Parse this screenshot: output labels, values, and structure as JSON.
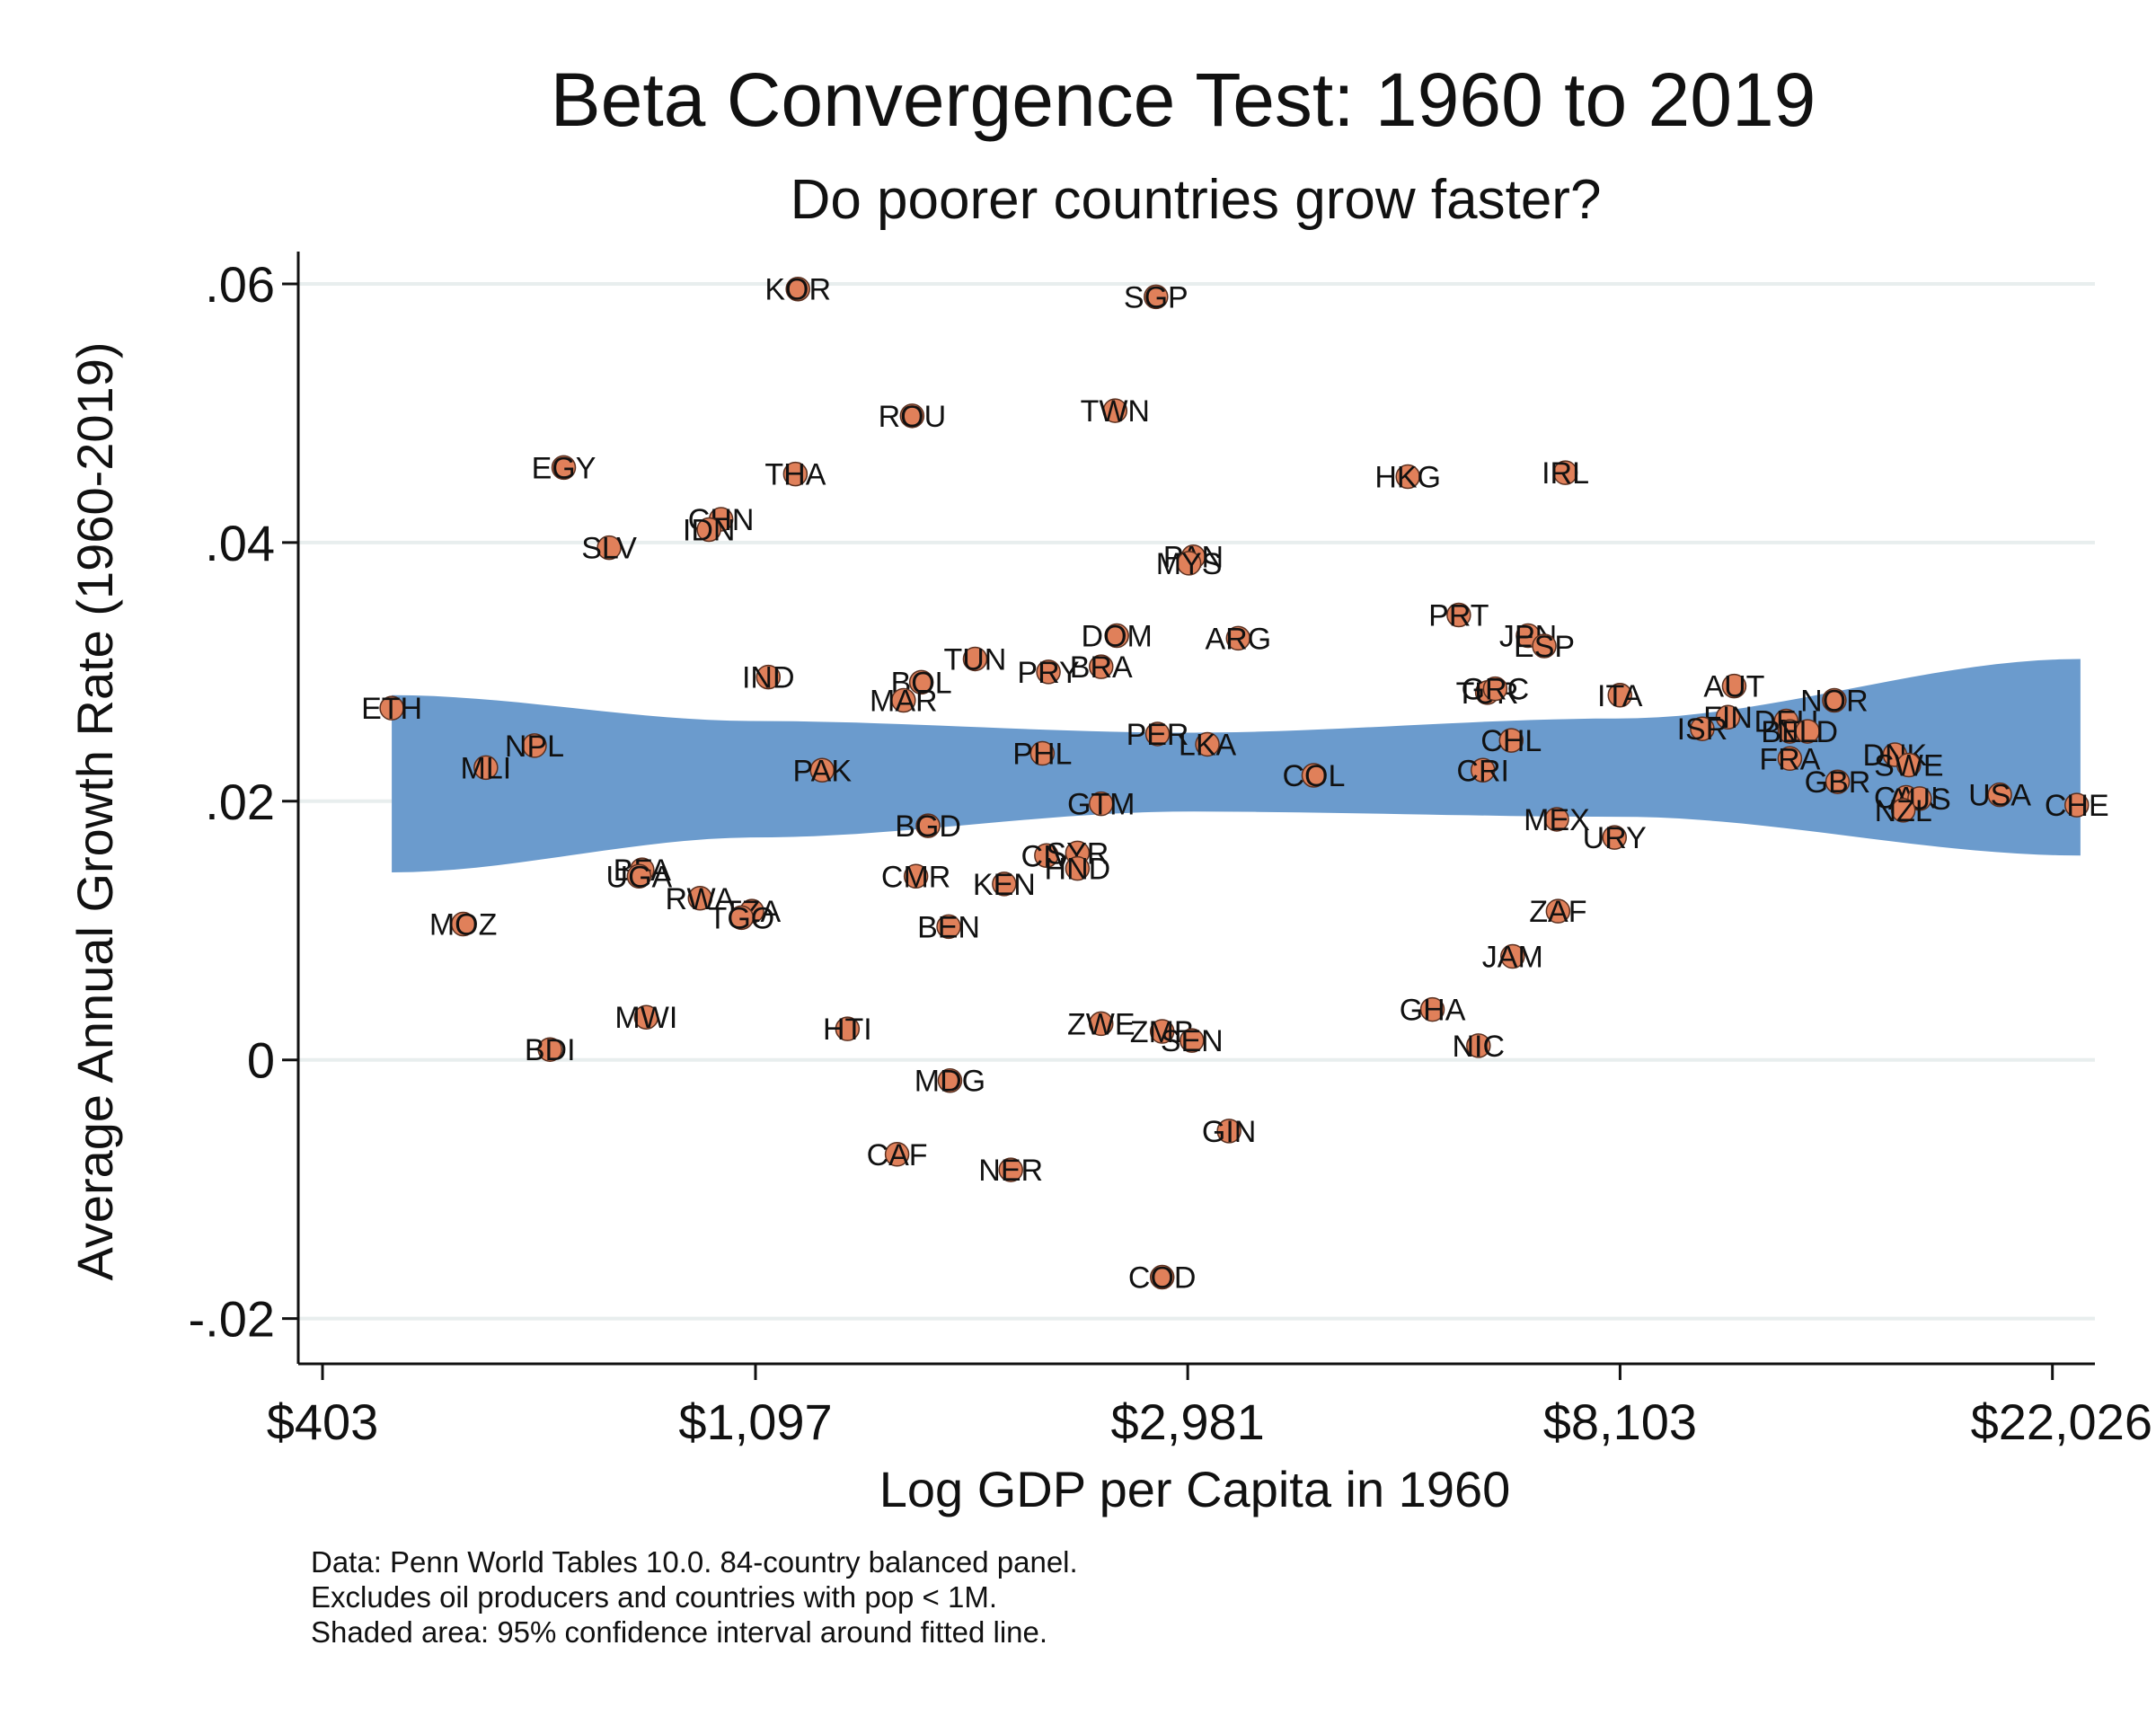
{
  "chart_data": {
    "type": "scatter",
    "title": "Beta Convergence Test: 1960 to 2019",
    "subtitle": "Do poorer countries grow faster?",
    "xlabel": "Log GDP per Capita in 1960",
    "ylabel": "Average Annual Growth Rate (1960-2019)",
    "x_scale": "log",
    "xlim": [
      381,
      24300
    ],
    "ylim": [
      -0.0235,
      0.0625
    ],
    "x_ticks": [
      403,
      1097,
      2981,
      8103,
      22026
    ],
    "x_tick_labels": [
      "$403",
      "$1,097",
      "$2,981",
      "$8,103",
      "$22,026"
    ],
    "y_ticks": [
      -0.02,
      0,
      0.02,
      0.04,
      0.06
    ],
    "y_tick_labels": [
      "-.02",
      "0",
      ".02",
      ".04",
      ".06"
    ],
    "grid": "horizontal",
    "colors": {
      "marker": "#e0805a",
      "marker_edge": "#5a3020",
      "ci_band": "#6b9bcd"
    },
    "ci_band": {
      "x": [
        473,
        1097,
        2981,
        8103,
        23500
      ],
      "lower": [
        0.0145,
        0.0172,
        0.0192,
        0.0188,
        0.0158
      ],
      "upper": [
        0.0282,
        0.0262,
        0.0253,
        0.0264,
        0.031
      ]
    },
    "points": [
      {
        "label": "KOR",
        "x": 1210,
        "y": 0.0596
      },
      {
        "label": "SGP",
        "x": 2770,
        "y": 0.059
      },
      {
        "label": "ROU",
        "x": 1576,
        "y": 0.0498
      },
      {
        "label": "TWN",
        "x": 2520,
        "y": 0.0502
      },
      {
        "label": "EGY",
        "x": 704,
        "y": 0.0458
      },
      {
        "label": "THA",
        "x": 1203,
        "y": 0.0453
      },
      {
        "label": "HKG",
        "x": 4960,
        "y": 0.0451
      },
      {
        "label": "IRL",
        "x": 7140,
        "y": 0.0454
      },
      {
        "label": "CHN",
        "x": 1013,
        "y": 0.0418
      },
      {
        "label": "IDN",
        "x": 985,
        "y": 0.041
      },
      {
        "label": "SLV",
        "x": 782,
        "y": 0.0396
      },
      {
        "label": "PAN",
        "x": 3020,
        "y": 0.0389
      },
      {
        "label": "MYS",
        "x": 2990,
        "y": 0.0384
      },
      {
        "label": "PRT",
        "x": 5580,
        "y": 0.0344
      },
      {
        "label": "DOM",
        "x": 2530,
        "y": 0.0328
      },
      {
        "label": "ARG",
        "x": 3350,
        "y": 0.0326
      },
      {
        "label": "JPN",
        "x": 6550,
        "y": 0.0328
      },
      {
        "label": "ESP",
        "x": 6800,
        "y": 0.032
      },
      {
        "label": "TUN",
        "x": 1823,
        "y": 0.031
      },
      {
        "label": "PRY",
        "x": 2160,
        "y": 0.03
      },
      {
        "label": "BRA",
        "x": 2440,
        "y": 0.0304
      },
      {
        "label": "IND",
        "x": 1130,
        "y": 0.0296
      },
      {
        "label": "BOL",
        "x": 1610,
        "y": 0.0292
      },
      {
        "label": "MAR",
        "x": 1545,
        "y": 0.0278
      },
      {
        "label": "AUT",
        "x": 10550,
        "y": 0.0289
      },
      {
        "label": "TUR",
        "x": 5960,
        "y": 0.0284
      },
      {
        "label": "GRC",
        "x": 6070,
        "y": 0.0287
      },
      {
        "label": "ITA",
        "x": 8100,
        "y": 0.0282
      },
      {
        "label": "NOR",
        "x": 13300,
        "y": 0.0278
      },
      {
        "label": "ETH",
        "x": 473,
        "y": 0.0272
      },
      {
        "label": "FIN",
        "x": 10400,
        "y": 0.0265
      },
      {
        "label": "DEU",
        "x": 11900,
        "y": 0.0262
      },
      {
        "label": "ISR",
        "x": 9800,
        "y": 0.0256
      },
      {
        "label": "BEL",
        "x": 12000,
        "y": 0.0254
      },
      {
        "label": "NLD",
        "x": 12500,
        "y": 0.0254
      },
      {
        "label": "PER",
        "x": 2780,
        "y": 0.0252
      },
      {
        "label": "LKA",
        "x": 3120,
        "y": 0.0244
      },
      {
        "label": "CHL",
        "x": 6300,
        "y": 0.0247
      },
      {
        "label": "NPL",
        "x": 658,
        "y": 0.0243
      },
      {
        "label": "PHL",
        "x": 2130,
        "y": 0.0237
      },
      {
        "label": "FRA",
        "x": 12000,
        "y": 0.0233
      },
      {
        "label": "DNK",
        "x": 15300,
        "y": 0.0236
      },
      {
        "label": "SWE",
        "x": 15800,
        "y": 0.0228
      },
      {
        "label": "MLI",
        "x": 588,
        "y": 0.0226
      },
      {
        "label": "PAK",
        "x": 1280,
        "y": 0.0224
      },
      {
        "label": "CRI",
        "x": 5900,
        "y": 0.0224
      },
      {
        "label": "COL",
        "x": 3990,
        "y": 0.022
      },
      {
        "label": "GBR",
        "x": 13400,
        "y": 0.0215
      },
      {
        "label": "CAN",
        "x": 15700,
        "y": 0.0203
      },
      {
        "label": "AUS",
        "x": 16200,
        "y": 0.0202
      },
      {
        "label": "USA",
        "x": 19500,
        "y": 0.0205
      },
      {
        "label": "CHE",
        "x": 23300,
        "y": 0.0197
      },
      {
        "label": "GTM",
        "x": 2440,
        "y": 0.0198
      },
      {
        "label": "NZL",
        "x": 15600,
        "y": 0.0193
      },
      {
        "label": "MEX",
        "x": 7000,
        "y": 0.0186
      },
      {
        "label": "BGD",
        "x": 1635,
        "y": 0.0181
      },
      {
        "label": "URY",
        "x": 8000,
        "y": 0.0172
      },
      {
        "label": "CIV",
        "x": 2150,
        "y": 0.0158
      },
      {
        "label": "SYR",
        "x": 2310,
        "y": 0.016
      },
      {
        "label": "HND",
        "x": 2310,
        "y": 0.0148
      },
      {
        "label": "BFA",
        "x": 844,
        "y": 0.0147
      },
      {
        "label": "UGA",
        "x": 838,
        "y": 0.0142
      },
      {
        "label": "CMR",
        "x": 1590,
        "y": 0.0142
      },
      {
        "label": "KEN",
        "x": 1950,
        "y": 0.0136
      },
      {
        "label": "RWA",
        "x": 965,
        "y": 0.0125
      },
      {
        "label": "TZA",
        "x": 1088,
        "y": 0.0115
      },
      {
        "label": "ZAF",
        "x": 7020,
        "y": 0.0115
      },
      {
        "label": "TGO",
        "x": 1062,
        "y": 0.011
      },
      {
        "label": "MOZ",
        "x": 558,
        "y": 0.0105
      },
      {
        "label": "BEN",
        "x": 1715,
        "y": 0.0103
      },
      {
        "label": "JAM",
        "x": 6320,
        "y": 0.008
      },
      {
        "label": "GHA",
        "x": 5250,
        "y": 0.0039
      },
      {
        "label": "MWI",
        "x": 852,
        "y": 0.0033
      },
      {
        "label": "ZWE",
        "x": 2440,
        "y": 0.0028
      },
      {
        "label": "HTI",
        "x": 1357,
        "y": 0.0024
      },
      {
        "label": "ZMB",
        "x": 2810,
        "y": 0.0022
      },
      {
        "label": "SEN",
        "x": 3010,
        "y": 0.0015
      },
      {
        "label": "NIC",
        "x": 5840,
        "y": 0.0011
      },
      {
        "label": "BDI",
        "x": 682,
        "y": 0.0008
      },
      {
        "label": "MDG",
        "x": 1720,
        "y": -0.0016
      },
      {
        "label": "GIN",
        "x": 3280,
        "y": -0.0055
      },
      {
        "label": "CAF",
        "x": 1522,
        "y": -0.0073
      },
      {
        "label": "NER",
        "x": 1980,
        "y": -0.0085
      },
      {
        "label": "COD",
        "x": 2810,
        "y": -0.0168
      }
    ]
  },
  "notes": [
    "Data: Penn World Tables 10.0. 84-country balanced panel.",
    "Excludes oil producers and countries with pop < 1M.",
    "Shaded area: 95% confidence interval around fitted line."
  ]
}
